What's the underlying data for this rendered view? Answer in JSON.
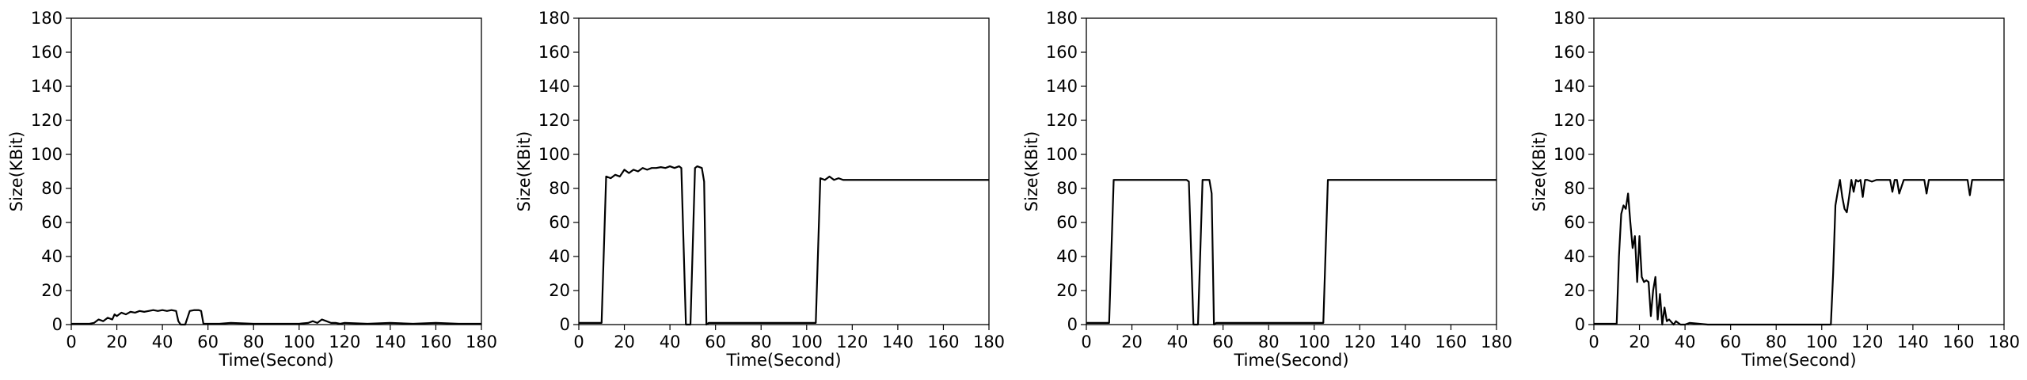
{
  "chart_data": [
    {
      "type": "line",
      "xlabel": "Time(Second)",
      "ylabel": "Size(KBit)",
      "xlim": [
        0,
        180
      ],
      "ylim": [
        0,
        180
      ],
      "xticks": [
        "0",
        "20",
        "40",
        "60",
        "80",
        "100",
        "120",
        "140",
        "160",
        "180"
      ],
      "yticks": [
        "0",
        "20",
        "40",
        "60",
        "80",
        "100",
        "120",
        "140",
        "160",
        "180"
      ],
      "grid": false,
      "series": [
        {
          "color": "#000000",
          "x": [
            0,
            8,
            10,
            12,
            14,
            16,
            18,
            19,
            20,
            22,
            24,
            26,
            28,
            30,
            32,
            34,
            36,
            38,
            40,
            42,
            44,
            46,
            47,
            48,
            50,
            52,
            54,
            56,
            57,
            58,
            60,
            65,
            70,
            80,
            90,
            100,
            104,
            106,
            108,
            110,
            112,
            114,
            116,
            118,
            120,
            130,
            140,
            150,
            160,
            170,
            180
          ],
          "y": [
            0.5,
            0.5,
            1,
            3,
            2,
            4,
            3,
            6,
            5,
            7,
            6,
            7.5,
            7,
            8,
            7.5,
            8,
            8.5,
            8,
            8.5,
            8,
            8.5,
            8,
            2,
            0,
            0,
            8,
            8.5,
            8.5,
            8,
            0.5,
            0.5,
            0.5,
            1,
            0.5,
            0.5,
            0.5,
            1,
            2,
            1,
            3,
            2,
            1,
            1,
            0.5,
            1,
            0.5,
            1,
            0.5,
            1,
            0.5,
            0.5
          ]
        }
      ]
    },
    {
      "type": "line",
      "xlabel": "Time(Second)",
      "ylabel": "Size(KBit)",
      "xlim": [
        0,
        180
      ],
      "ylim": [
        0,
        180
      ],
      "xticks": [
        "0",
        "20",
        "40",
        "60",
        "80",
        "100",
        "120",
        "140",
        "160",
        "180"
      ],
      "yticks": [
        "0",
        "20",
        "40",
        "60",
        "80",
        "100",
        "120",
        "140",
        "160",
        "180"
      ],
      "grid": false,
      "series": [
        {
          "color": "#000000",
          "x": [
            0,
            5,
            10,
            12,
            14,
            16,
            18,
            20,
            22,
            24,
            26,
            28,
            30,
            32,
            34,
            36,
            38,
            40,
            42,
            44,
            45,
            47,
            49,
            51,
            52,
            54,
            55,
            56,
            57,
            60,
            70,
            80,
            90,
            100,
            104,
            106,
            108,
            110,
            112,
            114,
            116,
            120,
            130,
            140,
            150,
            160,
            170,
            180
          ],
          "y": [
            1,
            1,
            1,
            87,
            86,
            88,
            87,
            91,
            89,
            91,
            90,
            92,
            91,
            92,
            92,
            92.5,
            92,
            93,
            92,
            93,
            92,
            0,
            0,
            92,
            93,
            92,
            84,
            0,
            1,
            1,
            1,
            1,
            1,
            1,
            1,
            86,
            85,
            87,
            85,
            86,
            85,
            85,
            85,
            85,
            85,
            85,
            85,
            85
          ]
        }
      ]
    },
    {
      "type": "line",
      "xlabel": "Time(Second)",
      "ylabel": "Size(KBit)",
      "xlim": [
        0,
        180
      ],
      "ylim": [
        0,
        180
      ],
      "xticks": [
        "0",
        "20",
        "40",
        "60",
        "80",
        "100",
        "120",
        "140",
        "160",
        "180"
      ],
      "yticks": [
        "0",
        "20",
        "40",
        "60",
        "80",
        "100",
        "120",
        "140",
        "160",
        "180"
      ],
      "grid": false,
      "series": [
        {
          "color": "#000000",
          "x": [
            0,
            5,
            10,
            12,
            20,
            30,
            40,
            44,
            45,
            47,
            49,
            51,
            52,
            54,
            55,
            56,
            57,
            60,
            70,
            80,
            90,
            100,
            104,
            106,
            110,
            120,
            130,
            140,
            150,
            160,
            170,
            180
          ],
          "y": [
            1,
            1,
            1,
            85,
            85,
            85,
            85,
            85,
            84,
            0,
            0,
            85,
            85,
            85,
            77,
            0,
            1,
            1,
            1,
            1,
            1,
            1,
            1,
            85,
            85,
            85,
            85,
            85,
            85,
            85,
            85,
            85
          ]
        }
      ]
    },
    {
      "type": "line",
      "xlabel": "Time(Second)",
      "ylabel": "Size(KBit)",
      "xlim": [
        0,
        180
      ],
      "ylim": [
        0,
        180
      ],
      "xticks": [
        "0",
        "20",
        "40",
        "60",
        "80",
        "100",
        "120",
        "140",
        "160",
        "180"
      ],
      "yticks": [
        "0",
        "20",
        "40",
        "60",
        "80",
        "100",
        "120",
        "140",
        "160",
        "180"
      ],
      "grid": false,
      "series": [
        {
          "color": "#000000",
          "x": [
            0,
            8,
            10,
            11,
            12,
            13,
            14,
            15,
            16,
            17,
            18,
            19,
            20,
            21,
            22,
            23,
            24,
            25,
            26,
            27,
            28,
            29,
            30,
            31,
            32,
            33,
            35,
            36,
            38,
            40,
            42,
            50,
            60,
            70,
            80,
            90,
            100,
            104,
            105,
            106,
            107,
            108,
            109,
            110,
            111,
            112,
            113,
            114,
            115,
            116,
            117,
            118,
            119,
            120,
            122,
            124,
            126,
            128,
            130,
            131,
            132,
            133,
            134,
            136,
            140,
            145,
            146,
            147,
            150,
            160,
            164,
            165,
            166,
            170,
            175,
            180
          ],
          "y": [
            0.5,
            0.5,
            0.5,
            40,
            65,
            70,
            68,
            77,
            60,
            45,
            52,
            25,
            52,
            28,
            25,
            26,
            25,
            5,
            20,
            28,
            3,
            18,
            0,
            10,
            2,
            3,
            0,
            2,
            0,
            0,
            1,
            0,
            0,
            0,
            0,
            0,
            0,
            0,
            30,
            70,
            78,
            85,
            75,
            68,
            66,
            75,
            85,
            78,
            85,
            84,
            85,
            75,
            85,
            85,
            84,
            85,
            85,
            85,
            85,
            78,
            85,
            85,
            77,
            85,
            85,
            85,
            77,
            85,
            85,
            85,
            85,
            76,
            85,
            85,
            85,
            85
          ]
        }
      ]
    }
  ]
}
